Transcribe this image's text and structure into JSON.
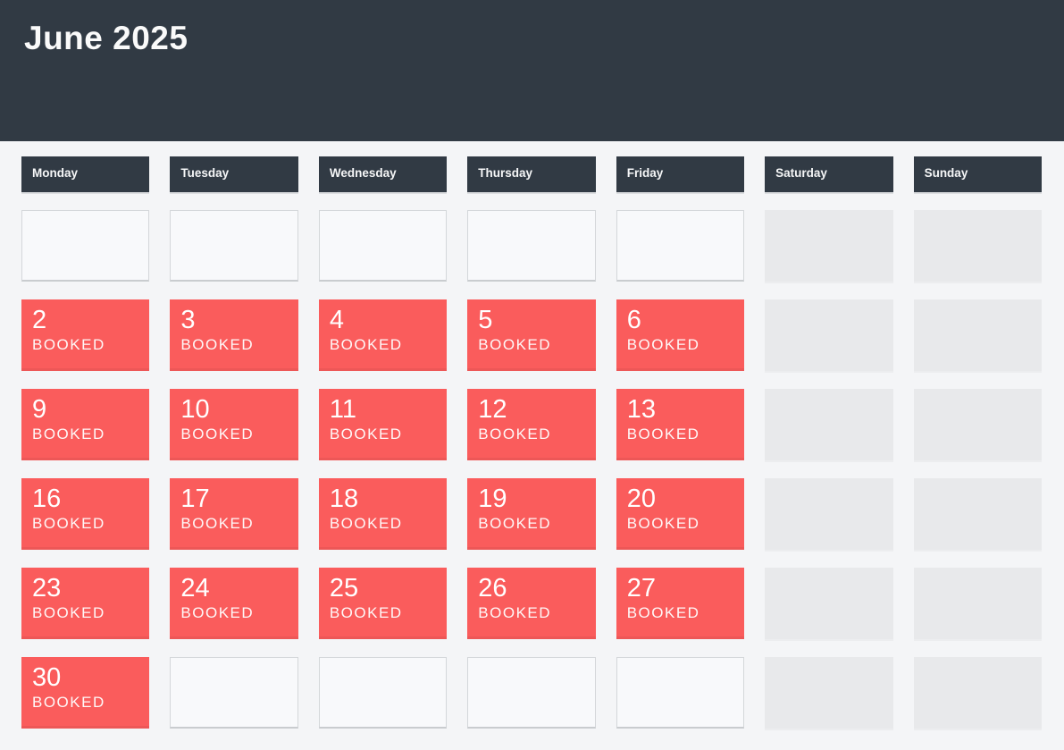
{
  "header": {
    "title": "June 2025"
  },
  "calendar": {
    "day_headers": [
      "Monday",
      "Tuesday",
      "Wednesday",
      "Thursday",
      "Friday",
      "Saturday",
      "Sunday"
    ],
    "booked_label": "BOOKED",
    "weeks": [
      [
        {
          "type": "empty"
        },
        {
          "type": "empty"
        },
        {
          "type": "empty"
        },
        {
          "type": "empty"
        },
        {
          "type": "empty"
        },
        {
          "type": "weekend"
        },
        {
          "type": "weekend"
        }
      ],
      [
        {
          "type": "booked",
          "day": "2"
        },
        {
          "type": "booked",
          "day": "3"
        },
        {
          "type": "booked",
          "day": "4"
        },
        {
          "type": "booked",
          "day": "5"
        },
        {
          "type": "booked",
          "day": "6"
        },
        {
          "type": "weekend"
        },
        {
          "type": "weekend"
        }
      ],
      [
        {
          "type": "booked",
          "day": "9"
        },
        {
          "type": "booked",
          "day": "10"
        },
        {
          "type": "booked",
          "day": "11"
        },
        {
          "type": "booked",
          "day": "12"
        },
        {
          "type": "booked",
          "day": "13"
        },
        {
          "type": "weekend"
        },
        {
          "type": "weekend"
        }
      ],
      [
        {
          "type": "booked",
          "day": "16"
        },
        {
          "type": "booked",
          "day": "17"
        },
        {
          "type": "booked",
          "day": "18"
        },
        {
          "type": "booked",
          "day": "19"
        },
        {
          "type": "booked",
          "day": "20"
        },
        {
          "type": "weekend"
        },
        {
          "type": "weekend"
        }
      ],
      [
        {
          "type": "booked",
          "day": "23"
        },
        {
          "type": "booked",
          "day": "24"
        },
        {
          "type": "booked",
          "day": "25"
        },
        {
          "type": "booked",
          "day": "26"
        },
        {
          "type": "booked",
          "day": "27"
        },
        {
          "type": "weekend"
        },
        {
          "type": "weekend"
        }
      ],
      [
        {
          "type": "booked",
          "day": "30"
        },
        {
          "type": "empty"
        },
        {
          "type": "empty"
        },
        {
          "type": "empty"
        },
        {
          "type": "empty"
        },
        {
          "type": "weekend"
        },
        {
          "type": "weekend"
        }
      ]
    ]
  },
  "colors": {
    "banner_background": "#313a44",
    "booked_red": "#fa5c5c",
    "weekend_gray": "#e8e9eb",
    "page_background": "#f4f5f7"
  }
}
